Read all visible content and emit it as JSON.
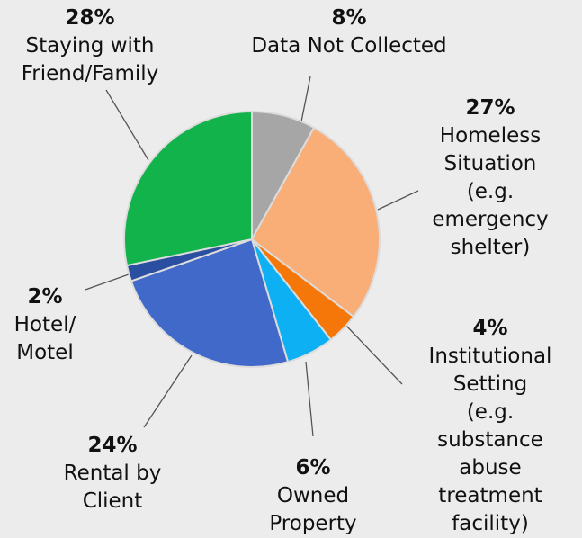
{
  "chart_data": {
    "type": "pie",
    "categories": [
      "Data Not Collected",
      "Homeless\nSituation (e.g.\nemergency\nshelter)",
      "Institutional\nSetting (e.g.\nsubstance abuse\ntreatment\nfacility)",
      "Owned\nProperty",
      "Rental by\nClient",
      "Hotel/\nMotel",
      "Staying with\nFriend/Family"
    ],
    "values": [
      8,
      27,
      4,
      6,
      24,
      2,
      28
    ],
    "value_labels": [
      "8%",
      "27%",
      "4%",
      "6%",
      "24%",
      "2%",
      "28%"
    ],
    "colors": [
      "#a6a6a6",
      "#f9ae78",
      "#f5770a",
      "#0db0f2",
      "#4169c9",
      "#2a4fa0",
      "#12b34a"
    ]
  }
}
